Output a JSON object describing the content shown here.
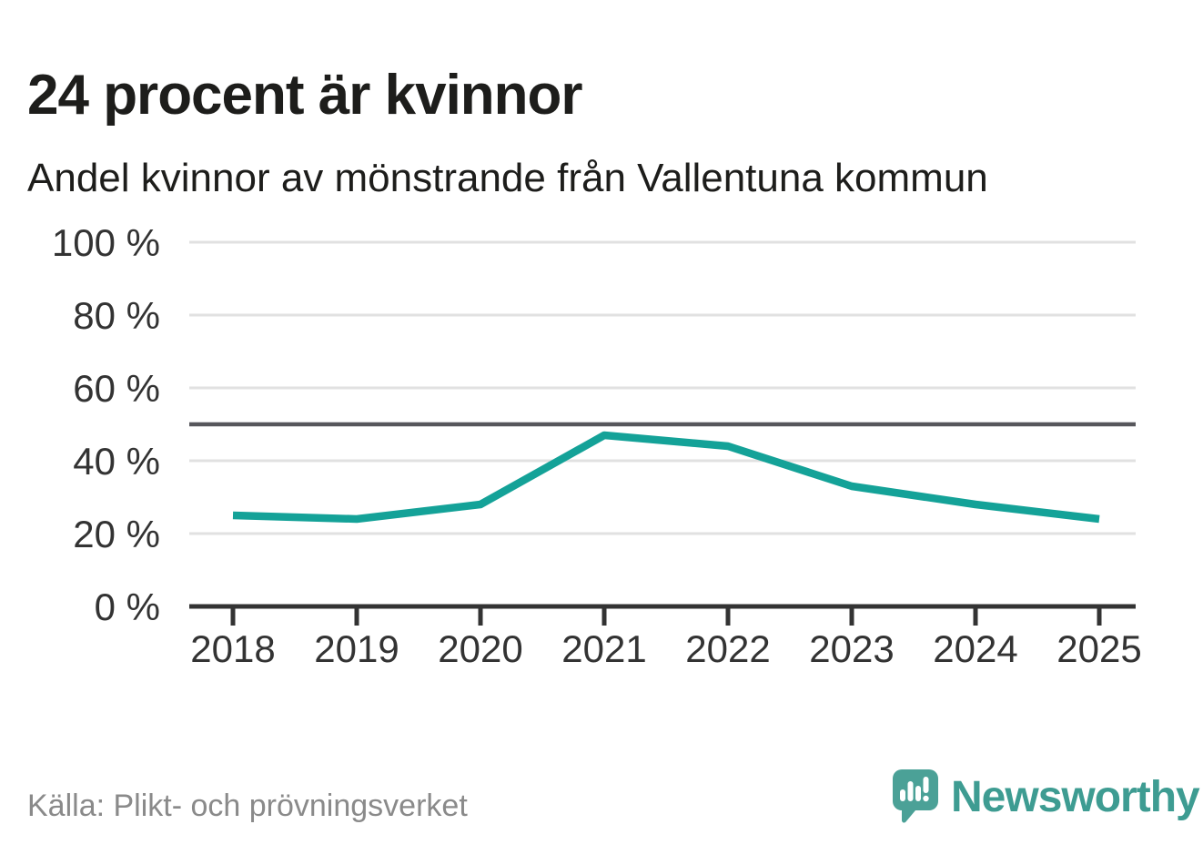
{
  "header": {
    "title": "24 procent är kvinnor",
    "subtitle": "Andel kvinnor av mönstrande från Vallentuna kommun"
  },
  "chart_data": {
    "type": "line",
    "title": "24 procent är kvinnor",
    "subtitle": "Andel kvinnor av mönstrande från Vallentuna kommun",
    "x": [
      2018,
      2019,
      2020,
      2021,
      2022,
      2023,
      2024,
      2025
    ],
    "series": [
      {
        "name": "Andel kvinnor av mönstrande",
        "values": [
          25,
          24,
          28,
          47,
          44,
          33,
          28,
          24
        ],
        "color": "#14A298"
      }
    ],
    "unit": "%",
    "ylim": [
      0,
      100
    ],
    "y_ticks": [
      0,
      20,
      40,
      60,
      80,
      100
    ],
    "y_tick_suffix": " %",
    "reference_line": {
      "value": 50,
      "color": "#57575c"
    },
    "grid": true,
    "legend": "none"
  },
  "footer": {
    "source": "Källa: Plikt- och prövningsverket",
    "brand": "Newsworthy"
  },
  "colors": {
    "line": "#14A298",
    "grid": "#e1e1e1",
    "axis": "#333333",
    "reference": "#57575c",
    "text": "#333333",
    "title": "#1d1d1b",
    "source_text": "#8a8a8a",
    "brand_text": "#3e9c92",
    "logo_bubble": "#4ba197"
  }
}
